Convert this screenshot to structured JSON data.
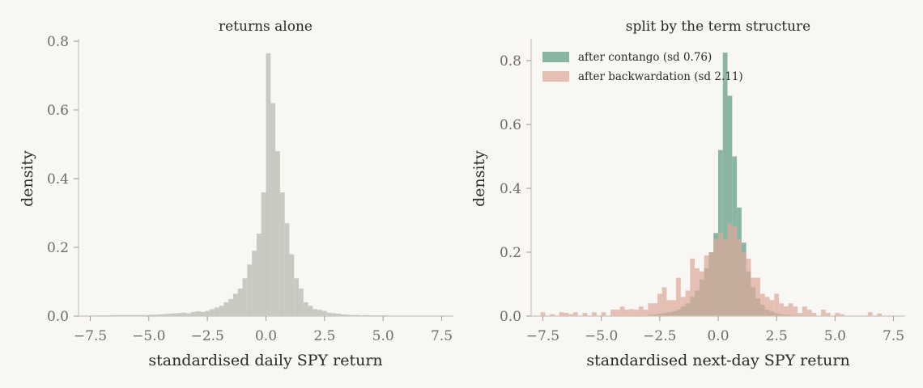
{
  "chart_data": [
    {
      "type": "bar",
      "title": "returns alone",
      "xlabel": "standardised daily SPY return",
      "ylabel": "density",
      "xlim": [
        -8,
        8
      ],
      "ylim": [
        0,
        0.8
      ],
      "xticks": [
        -7.5,
        -5.0,
        -2.5,
        0.0,
        2.5,
        5.0,
        7.5
      ],
      "xtick_labels": [
        "−7.5",
        "−5.0",
        "−2.5",
        "0.0",
        "2.5",
        "5.0",
        "7.5"
      ],
      "yticks": [
        0.0,
        0.2,
        0.4,
        0.6,
        0.8
      ],
      "ytick_labels": [
        "0.0",
        "0.2",
        "0.4",
        "0.6",
        "0.8"
      ],
      "grid": false,
      "bin_width": 0.2,
      "series": [
        {
          "color": "#c9c8c1",
          "opacity": 1,
          "bins": [
            [
              -7.4,
              0.002
            ],
            [
              -7.2,
              0.002
            ],
            [
              -7.0,
              0.002
            ],
            [
              -6.8,
              0.002
            ],
            [
              -6.6,
              0.003
            ],
            [
              -6.4,
              0.003
            ],
            [
              -6.2,
              0.003
            ],
            [
              -6.0,
              0.003
            ],
            [
              -5.8,
              0.003
            ],
            [
              -5.6,
              0.003
            ],
            [
              -5.4,
              0.003
            ],
            [
              -5.2,
              0.003
            ],
            [
              -5.0,
              0.004
            ],
            [
              -4.8,
              0.004
            ],
            [
              -4.6,
              0.005
            ],
            [
              -4.4,
              0.006
            ],
            [
              -4.2,
              0.007
            ],
            [
              -4.0,
              0.008
            ],
            [
              -3.8,
              0.009
            ],
            [
              -3.6,
              0.01
            ],
            [
              -3.4,
              0.008
            ],
            [
              -3.2,
              0.012
            ],
            [
              -3.0,
              0.014
            ],
            [
              -2.8,
              0.012
            ],
            [
              -2.6,
              0.015
            ],
            [
              -2.4,
              0.02
            ],
            [
              -2.2,
              0.025
            ],
            [
              -2.0,
              0.03
            ],
            [
              -1.8,
              0.04
            ],
            [
              -1.6,
              0.05
            ],
            [
              -1.4,
              0.065
            ],
            [
              -1.2,
              0.08
            ],
            [
              -1.0,
              0.11
            ],
            [
              -0.8,
              0.15
            ],
            [
              -0.6,
              0.19
            ],
            [
              -0.4,
              0.24
            ],
            [
              -0.2,
              0.36
            ],
            [
              0.0,
              0.765
            ],
            [
              0.2,
              0.62
            ],
            [
              0.4,
              0.48
            ],
            [
              0.6,
              0.36
            ],
            [
              0.8,
              0.27
            ],
            [
              1.0,
              0.18
            ],
            [
              1.2,
              0.11
            ],
            [
              1.4,
              0.08
            ],
            [
              1.6,
              0.04
            ],
            [
              1.8,
              0.03
            ],
            [
              2.0,
              0.02
            ],
            [
              2.2,
              0.018
            ],
            [
              2.4,
              0.015
            ],
            [
              2.6,
              0.01
            ],
            [
              2.8,
              0.008
            ],
            [
              3.0,
              0.007
            ],
            [
              3.2,
              0.005
            ],
            [
              3.4,
              0.004
            ],
            [
              3.6,
              0.003
            ],
            [
              3.8,
              0.003
            ],
            [
              4.0,
              0.002
            ],
            [
              4.2,
              0.003
            ],
            [
              4.4,
              0.002
            ],
            [
              4.6,
              0.002
            ],
            [
              4.8,
              0.002
            ],
            [
              5.0,
              0.002
            ]
          ]
        }
      ]
    },
    {
      "type": "bar",
      "title": "split by the term structure",
      "xlabel": "standardised next-day SPY return",
      "ylabel": "density",
      "xlim": [
        -8,
        8
      ],
      "ylim": [
        0,
        0.86
      ],
      "xticks": [
        -7.5,
        -5.0,
        -2.5,
        0.0,
        2.5,
        5.0,
        7.5
      ],
      "xtick_labels": [
        "−7.5",
        "−5.0",
        "−2.5",
        "0.0",
        "2.5",
        "5.0",
        "7.5"
      ],
      "yticks": [
        0.0,
        0.2,
        0.4,
        0.6,
        0.8
      ],
      "ytick_labels": [
        "0.0",
        "0.2",
        "0.4",
        "0.6",
        "0.8"
      ],
      "grid": false,
      "legend": "top-left",
      "bin_width": 0.2,
      "series": [
        {
          "name": "after contango  (sd 0.76)",
          "color": "#78a994",
          "opacity": 0.85,
          "bins": [
            [
              -3.0,
              0.004
            ],
            [
              -2.8,
              0.005
            ],
            [
              -2.6,
              0.007
            ],
            [
              -2.4,
              0.009
            ],
            [
              -2.2,
              0.012
            ],
            [
              -2.0,
              0.015
            ],
            [
              -1.8,
              0.02
            ],
            [
              -1.6,
              0.03
            ],
            [
              -1.4,
              0.04
            ],
            [
              -1.2,
              0.06
            ],
            [
              -1.0,
              0.08
            ],
            [
              -0.8,
              0.115
            ],
            [
              -0.6,
              0.15
            ],
            [
              -0.4,
              0.2
            ],
            [
              -0.2,
              0.26
            ],
            [
              0.0,
              0.52
            ],
            [
              0.2,
              0.825
            ],
            [
              0.4,
              0.69
            ],
            [
              0.6,
              0.5
            ],
            [
              0.8,
              0.34
            ],
            [
              1.0,
              0.23
            ],
            [
              1.2,
              0.14
            ],
            [
              1.4,
              0.09
            ],
            [
              1.6,
              0.055
            ],
            [
              1.8,
              0.035
            ],
            [
              2.0,
              0.02
            ],
            [
              2.2,
              0.014
            ],
            [
              2.4,
              0.009
            ],
            [
              2.6,
              0.006
            ],
            [
              2.8,
              0.004
            ],
            [
              3.0,
              0.003
            ],
            [
              3.2,
              0.002
            ]
          ]
        },
        {
          "name": "after backwardation  (sd 2.11)",
          "color": "#dca99a",
          "opacity": 0.72,
          "bins": [
            [
              -7.6,
              0.012
            ],
            [
              -7.2,
              0.006
            ],
            [
              -6.8,
              0.012
            ],
            [
              -6.6,
              0.01
            ],
            [
              -6.4,
              0.006
            ],
            [
              -6.2,
              0.012
            ],
            [
              -5.8,
              0.01
            ],
            [
              -5.4,
              0.012
            ],
            [
              -5.0,
              0.012
            ],
            [
              -4.6,
              0.02
            ],
            [
              -4.4,
              0.02
            ],
            [
              -4.2,
              0.03
            ],
            [
              -4.0,
              0.02
            ],
            [
              -3.8,
              0.022
            ],
            [
              -3.6,
              0.02
            ],
            [
              -3.4,
              0.03
            ],
            [
              -3.2,
              0.02
            ],
            [
              -3.0,
              0.04
            ],
            [
              -2.8,
              0.04
            ],
            [
              -2.6,
              0.07
            ],
            [
              -2.4,
              0.09
            ],
            [
              -2.2,
              0.05
            ],
            [
              -2.0,
              0.05
            ],
            [
              -1.8,
              0.12
            ],
            [
              -1.6,
              0.06
            ],
            [
              -1.4,
              0.08
            ],
            [
              -1.2,
              0.18
            ],
            [
              -1.0,
              0.15
            ],
            [
              -0.8,
              0.14
            ],
            [
              -0.6,
              0.19
            ],
            [
              -0.4,
              0.2
            ],
            [
              -0.2,
              0.24
            ],
            [
              0.0,
              0.26
            ],
            [
              0.2,
              0.24
            ],
            [
              0.4,
              0.29
            ],
            [
              0.6,
              0.28
            ],
            [
              0.8,
              0.24
            ],
            [
              1.0,
              0.2
            ],
            [
              1.2,
              0.18
            ],
            [
              1.4,
              0.12
            ],
            [
              1.6,
              0.12
            ],
            [
              1.8,
              0.07
            ],
            [
              2.0,
              0.06
            ],
            [
              2.2,
              0.05
            ],
            [
              2.4,
              0.07
            ],
            [
              2.6,
              0.04
            ],
            [
              2.8,
              0.03
            ],
            [
              3.0,
              0.04
            ],
            [
              3.2,
              0.03
            ],
            [
              3.4,
              0.01
            ],
            [
              3.6,
              0.03
            ],
            [
              3.8,
              0.02
            ],
            [
              4.0,
              0.01
            ],
            [
              4.4,
              0.02
            ],
            [
              4.6,
              0.01
            ],
            [
              5.0,
              0.01
            ],
            [
              5.2,
              0.006
            ],
            [
              6.4,
              0.012
            ],
            [
              6.8,
              0.008
            ]
          ]
        }
      ]
    }
  ]
}
